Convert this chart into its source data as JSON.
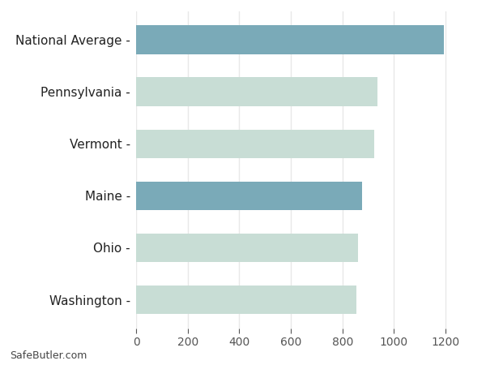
{
  "categories": [
    "Washington",
    "Ohio",
    "Maine",
    "Vermont",
    "Pennsylvania",
    "National Average"
  ],
  "values": [
    855,
    860,
    876,
    923,
    936,
    1192
  ],
  "bar_colors": [
    "#c8ddd5",
    "#c8ddd5",
    "#7aaab8",
    "#c8ddd5",
    "#c8ddd5",
    "#7aaab8"
  ],
  "background_color": "#ffffff",
  "xlim": [
    0,
    1300
  ],
  "xticks": [
    0,
    200,
    400,
    600,
    800,
    1000,
    1200
  ],
  "footer_text": "SafeButler.com",
  "tick_fontsize": 10,
  "label_fontsize": 11,
  "bar_height": 0.55,
  "grid_color": "#e8e8e8",
  "label_color": "#222222",
  "tick_color": "#555555"
}
